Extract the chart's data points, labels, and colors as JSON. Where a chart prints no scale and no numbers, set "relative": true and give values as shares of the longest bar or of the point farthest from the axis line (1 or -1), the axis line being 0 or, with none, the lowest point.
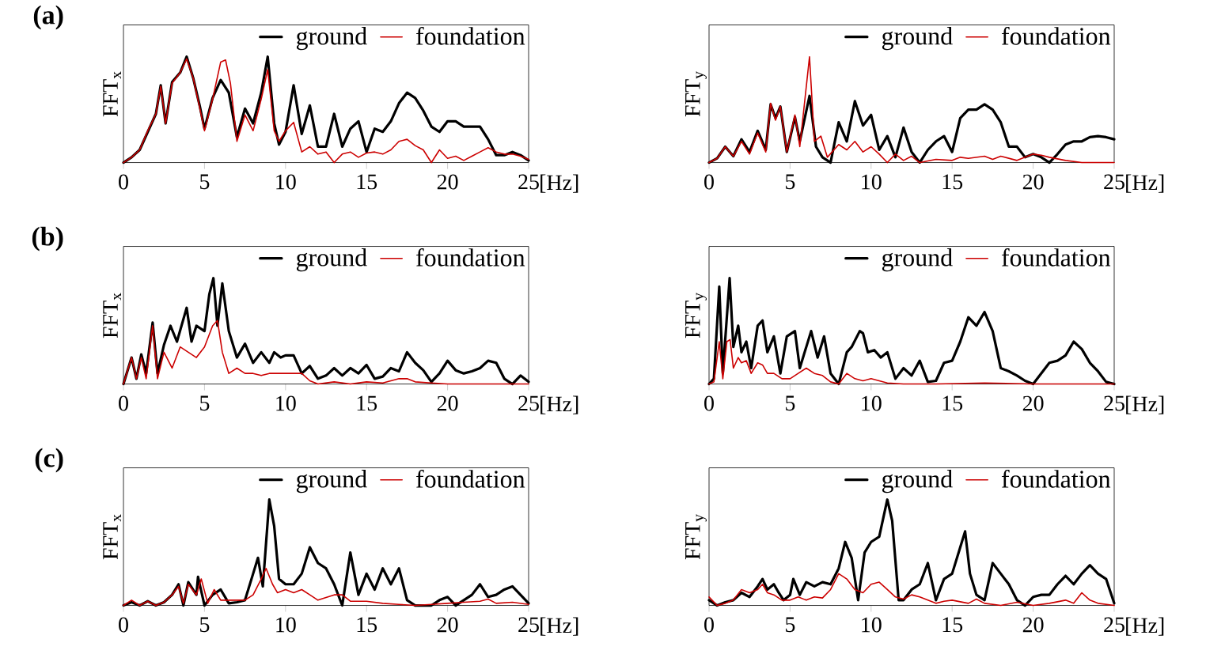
{
  "chart_data": [
    {
      "type": "line",
      "title": "(a)",
      "xlabel": "[Hz]",
      "ylabel": "FFT$_{x}$",
      "relative": true,
      "xlim": [
        0,
        25
      ],
      "xticks": [
        0,
        5,
        10,
        15,
        20,
        25
      ],
      "legend": "top right",
      "series": [
        {
          "name": "ground",
          "color": "#000000",
          "x": [
            0,
            0.5,
            1,
            1.5,
            2,
            2.3,
            2.6,
            3,
            3.5,
            3.9,
            4.3,
            4.7,
            5,
            5.5,
            6,
            6.5,
            7,
            7.5,
            8,
            8.5,
            8.9,
            9.3,
            9.6,
            10,
            10.5,
            11,
            11.5,
            12,
            12.5,
            13,
            13.5,
            14,
            14.5,
            15,
            15.5,
            16,
            16.5,
            17,
            17.5,
            18,
            18.5,
            19,
            19.5,
            20,
            20.5,
            21,
            21.5,
            22,
            22.5,
            23,
            23.5,
            24,
            24.5,
            25
          ],
          "values": [
            0,
            0.05,
            0.12,
            0.29,
            0.46,
            0.73,
            0.37,
            0.76,
            0.85,
            1.0,
            0.8,
            0.54,
            0.32,
            0.61,
            0.78,
            0.66,
            0.24,
            0.51,
            0.37,
            0.66,
            1.0,
            0.37,
            0.17,
            0.29,
            0.73,
            0.27,
            0.54,
            0.15,
            0.15,
            0.46,
            0.15,
            0.32,
            0.39,
            0.1,
            0.32,
            0.29,
            0.39,
            0.56,
            0.66,
            0.61,
            0.49,
            0.34,
            0.29,
            0.39,
            0.39,
            0.34,
            0.34,
            0.34,
            0.22,
            0.07,
            0.07,
            0.1,
            0.07,
            0.02
          ]
        },
        {
          "name": "foundation",
          "color": "#cc0000",
          "x": [
            0,
            0.5,
            1,
            1.5,
            2,
            2.3,
            2.6,
            3,
            3.5,
            3.9,
            4.3,
            4.7,
            5,
            5.5,
            6,
            6.3,
            6.6,
            7,
            7.5,
            8,
            8.5,
            8.9,
            9.3,
            9.6,
            10,
            10.5,
            11,
            11.5,
            12,
            12.5,
            13,
            13.5,
            14,
            14.5,
            15,
            15.5,
            16,
            16.5,
            17,
            17.5,
            18,
            18.5,
            19,
            19.5,
            20,
            20.5,
            21,
            21.5,
            22,
            22.5,
            23,
            23.5,
            24,
            24.5,
            25
          ],
          "values": [
            0,
            0.05,
            0.12,
            0.3,
            0.46,
            0.72,
            0.37,
            0.75,
            0.85,
            0.98,
            0.8,
            0.52,
            0.3,
            0.6,
            0.95,
            0.97,
            0.75,
            0.2,
            0.45,
            0.3,
            0.6,
            0.88,
            0.3,
            0.2,
            0.3,
            0.38,
            0.1,
            0.15,
            0.08,
            0.1,
            0,
            0.08,
            0.1,
            0.05,
            0.09,
            0.1,
            0.08,
            0.12,
            0.2,
            0.22,
            0.16,
            0.12,
            0,
            0.12,
            0.04,
            0.06,
            0.02,
            0.06,
            0.1,
            0.14,
            0.1,
            0.08,
            0.08,
            0.06,
            0.03
          ]
        }
      ]
    },
    {
      "type": "line",
      "xlabel": "[Hz]",
      "ylabel": "FFT$_{y}$",
      "relative": true,
      "xlim": [
        0,
        25
      ],
      "xticks": [
        0,
        5,
        10,
        15,
        20,
        25
      ],
      "legend": "top right",
      "series": [
        {
          "name": "ground",
          "color": "#000000",
          "x": [
            0,
            0.5,
            1,
            1.5,
            2,
            2.5,
            3,
            3.5,
            3.8,
            4.1,
            4.4,
            4.8,
            5.3,
            5.6,
            6.2,
            6.6,
            7,
            7.5,
            8,
            8.5,
            9,
            9.5,
            10,
            10.5,
            11,
            11.5,
            12,
            12.5,
            13,
            13.5,
            14,
            14.5,
            15,
            15.5,
            16,
            16.5,
            17,
            17.5,
            18,
            18.5,
            19,
            19.5,
            20,
            20.5,
            21,
            21.5,
            22,
            22.5,
            23,
            23.5,
            24,
            24.5,
            25
          ],
          "values": [
            0,
            0.04,
            0.15,
            0.06,
            0.22,
            0.1,
            0.3,
            0.12,
            0.55,
            0.42,
            0.53,
            0.1,
            0.43,
            0.2,
            0.63,
            0.15,
            0.05,
            0,
            0.38,
            0.2,
            0.58,
            0.35,
            0.45,
            0.12,
            0.25,
            0.05,
            0.33,
            0.1,
            0,
            0.12,
            0.2,
            0.25,
            0.1,
            0.42,
            0.5,
            0.5,
            0.55,
            0.5,
            0.38,
            0.15,
            0.15,
            0.05,
            0.08,
            0.05,
            0,
            0.08,
            0.17,
            0.2,
            0.2,
            0.24,
            0.25,
            0.24,
            0.22
          ]
        },
        {
          "name": "foundation",
          "color": "#cc0000",
          "x": [
            0,
            0.5,
            1,
            1.5,
            2,
            2.5,
            3,
            3.5,
            3.8,
            4.1,
            4.4,
            4.8,
            5.3,
            5.6,
            6.2,
            6.5,
            6.9,
            7.3,
            8,
            8.5,
            9,
            9.5,
            10,
            10.5,
            11,
            11.5,
            12,
            12.5,
            13,
            14,
            15,
            15.5,
            16,
            17,
            17.5,
            18,
            19,
            20,
            20.5,
            21,
            22,
            23,
            24,
            25
          ],
          "values": [
            0,
            0.04,
            0.15,
            0.06,
            0.2,
            0.08,
            0.28,
            0.1,
            0.56,
            0.4,
            0.53,
            0.1,
            0.45,
            0.15,
            1.0,
            0.2,
            0.25,
            0.05,
            0.17,
            0.12,
            0.2,
            0.1,
            0.15,
            0.08,
            0,
            0.08,
            0.02,
            0.06,
            0,
            0.03,
            0.02,
            0.05,
            0.04,
            0.06,
            0.03,
            0.06,
            0.02,
            0.08,
            0.07,
            0.05,
            0.02,
            0,
            0,
            0
          ]
        }
      ]
    },
    {
      "type": "line",
      "title": "(b)",
      "xlabel": "[Hz]",
      "ylabel": "FFT$_{x}$",
      "relative": true,
      "xlim": [
        0,
        25
      ],
      "xticks": [
        0,
        5,
        10,
        15,
        20,
        25
      ],
      "legend": "top right",
      "series": [
        {
          "name": "ground",
          "color": "#000000",
          "x": [
            0,
            0.5,
            0.8,
            1.1,
            1.4,
            1.8,
            2.1,
            2.5,
            2.9,
            3.3,
            3.9,
            4.2,
            4.5,
            5,
            5.3,
            5.55,
            5.8,
            6.1,
            6.5,
            7,
            7.5,
            8,
            8.5,
            9,
            9.3,
            9.7,
            10,
            10.5,
            11,
            11.5,
            12,
            12.5,
            13,
            13.5,
            14,
            14.5,
            15,
            15.5,
            16,
            16.5,
            17,
            17.5,
            18,
            18.5,
            19,
            19.5,
            20,
            20.5,
            21,
            21.5,
            22,
            22.5,
            23,
            23.5,
            24,
            24.5,
            25
          ],
          "values": [
            0,
            0.25,
            0.05,
            0.28,
            0.1,
            0.58,
            0.1,
            0.37,
            0.55,
            0.4,
            0.72,
            0.4,
            0.55,
            0.5,
            0.85,
            1.0,
            0.55,
            0.95,
            0.5,
            0.25,
            0.38,
            0.2,
            0.3,
            0.2,
            0.3,
            0.25,
            0.27,
            0.27,
            0.1,
            0.17,
            0.05,
            0.08,
            0.15,
            0.08,
            0.15,
            0.1,
            0.18,
            0.05,
            0.07,
            0.15,
            0.12,
            0.3,
            0.2,
            0.13,
            0.02,
            0.1,
            0.22,
            0.13,
            0.1,
            0.12,
            0.15,
            0.22,
            0.2,
            0.05,
            0,
            0.08,
            0.02
          ]
        },
        {
          "name": "foundation",
          "color": "#cc0000",
          "x": [
            0,
            0.5,
            0.8,
            1.1,
            1.4,
            1.8,
            2.1,
            2.5,
            3,
            3.5,
            4,
            4.5,
            5,
            5.5,
            5.8,
            6.1,
            6.5,
            7,
            7.5,
            8,
            8.5,
            9,
            10,
            11,
            11.5,
            12,
            13,
            14,
            15,
            16,
            17,
            17.5,
            18,
            19,
            20,
            25
          ],
          "values": [
            0,
            0.25,
            0.05,
            0.25,
            0.05,
            0.55,
            0.05,
            0.3,
            0.15,
            0.35,
            0.3,
            0.25,
            0.35,
            0.55,
            0.6,
            0.3,
            0.1,
            0.15,
            0.1,
            0.1,
            0.08,
            0.1,
            0.1,
            0.1,
            0.03,
            0,
            0.02,
            0,
            0.02,
            0.01,
            0.05,
            0.05,
            0.02,
            0.01,
            0,
            0
          ]
        }
      ]
    },
    {
      "type": "line",
      "xlabel": "[Hz]",
      "ylabel": "FFT$_{y}$",
      "relative": true,
      "xlim": [
        0,
        25
      ],
      "xticks": [
        0,
        5,
        10,
        15,
        20,
        25
      ],
      "legend": "top right",
      "series": [
        {
          "name": "ground",
          "color": "#000000",
          "x": [
            0,
            0.3,
            0.63,
            0.85,
            1.27,
            1.5,
            1.8,
            2,
            2.3,
            2.6,
            3,
            3.3,
            3.6,
            4,
            4.4,
            4.8,
            5.3,
            5.6,
            6.3,
            6.7,
            7.1,
            7.5,
            8,
            8.5,
            8.8,
            9.3,
            9.5,
            9.8,
            10.2,
            10.6,
            11,
            11.5,
            12,
            12.5,
            13,
            13.5,
            14,
            14.5,
            15,
            15.5,
            16,
            16.5,
            17,
            17.5,
            18,
            18.5,
            19,
            19.5,
            20,
            20.5,
            21,
            21.5,
            22,
            22.5,
            23,
            23.5,
            24,
            24.5,
            25
          ],
          "values": [
            0,
            0.05,
            0.92,
            0.1,
            1.0,
            0.35,
            0.55,
            0.3,
            0.4,
            0.15,
            0.55,
            0.6,
            0.3,
            0.45,
            0.1,
            0.45,
            0.5,
            0.15,
            0.5,
            0.25,
            0.45,
            0.1,
            0,
            0.3,
            0.35,
            0.5,
            0.48,
            0.3,
            0.32,
            0.25,
            0.3,
            0.05,
            0.15,
            0.08,
            0.22,
            0.02,
            0.03,
            0.2,
            0.22,
            0.4,
            0.63,
            0.55,
            0.68,
            0.5,
            0.15,
            0.12,
            0.08,
            0.03,
            0,
            0.1,
            0.2,
            0.22,
            0.27,
            0.4,
            0.33,
            0.2,
            0.12,
            0.02,
            0
          ]
        },
        {
          "name": "foundation",
          "color": "#cc0000",
          "x": [
            0,
            0.3,
            0.63,
            0.85,
            1.1,
            1.3,
            1.5,
            1.8,
            2,
            2.3,
            2.6,
            3,
            3.3,
            3.6,
            4,
            4.5,
            5,
            5.5,
            6,
            6.5,
            7,
            7.5,
            8,
            8.5,
            9,
            9.5,
            10,
            11,
            12,
            14,
            17,
            20,
            25
          ],
          "values": [
            0,
            0.02,
            0.4,
            0.05,
            0.4,
            0.42,
            0.15,
            0.25,
            0.2,
            0.22,
            0.1,
            0.2,
            0.18,
            0.1,
            0.1,
            0.05,
            0.05,
            0.1,
            0.15,
            0.1,
            0.08,
            0.02,
            0,
            0.1,
            0.05,
            0.03,
            0.05,
            0.01,
            0,
            0,
            0.01,
            0,
            0
          ]
        }
      ]
    },
    {
      "type": "line",
      "title": "(c)",
      "xlabel": "[Hz]",
      "ylabel": "FFT$_{x}$",
      "relative": true,
      "xlim": [
        0,
        25
      ],
      "xticks": [
        0,
        5,
        10,
        15,
        20,
        25
      ],
      "legend": "top right",
      "series": [
        {
          "name": "ground",
          "color": "#000000",
          "x": [
            0,
            0.5,
            1,
            1.5,
            2,
            2.5,
            3,
            3.4,
            3.7,
            4,
            4.5,
            4.6,
            5,
            5.5,
            6,
            6.5,
            7,
            7.5,
            8,
            8.3,
            8.6,
            9,
            9.3,
            9.6,
            10,
            10.5,
            11,
            11.5,
            12,
            12.5,
            13,
            13.5,
            14,
            14.5,
            15,
            15.5,
            16,
            16.5,
            17,
            17.5,
            18,
            19,
            19.5,
            20,
            20.5,
            21,
            21.5,
            22,
            22.5,
            23,
            23.5,
            24,
            24.5,
            25
          ],
          "values": [
            0,
            0.03,
            0,
            0.04,
            0,
            0.03,
            0.1,
            0.2,
            0,
            0.22,
            0.1,
            0.27,
            0,
            0.1,
            0.15,
            0.02,
            0.03,
            0.05,
            0.3,
            0.45,
            0.18,
            1.0,
            0.75,
            0.25,
            0.2,
            0.2,
            0.3,
            0.55,
            0.4,
            0.35,
            0.2,
            0,
            0.5,
            0.1,
            0.3,
            0.15,
            0.35,
            0.2,
            0.35,
            0.05,
            0,
            0,
            0.05,
            0.08,
            0,
            0.05,
            0.1,
            0.2,
            0.08,
            0.1,
            0.15,
            0.18,
            0.1,
            0.02
          ]
        },
        {
          "name": "foundation",
          "color": "#cc0000",
          "x": [
            0,
            0.5,
            1,
            1.5,
            2,
            2.5,
            3,
            3.4,
            3.7,
            4,
            4.5,
            4.8,
            5.2,
            5.6,
            6,
            6.5,
            7,
            7.5,
            8,
            8.5,
            8.8,
            9.2,
            9.5,
            10,
            10.5,
            11,
            11.5,
            12,
            13,
            13.5,
            14,
            15,
            16,
            17,
            18,
            19,
            20,
            21,
            22,
            22.5,
            23,
            24,
            25
          ],
          "values": [
            0,
            0.05,
            0,
            0.04,
            0,
            0.03,
            0.1,
            0.18,
            0.02,
            0.2,
            0.1,
            0.25,
            0.02,
            0.15,
            0.05,
            0.05,
            0.05,
            0.05,
            0.1,
            0.25,
            0.35,
            0.2,
            0.12,
            0.15,
            0.12,
            0.15,
            0.1,
            0.05,
            0.1,
            0.1,
            0.04,
            0.04,
            0.02,
            0.01,
            0,
            0.01,
            0.02,
            0.03,
            0.04,
            0.06,
            0.02,
            0.03,
            0.01
          ]
        }
      ]
    },
    {
      "type": "line",
      "xlabel": "[Hz]",
      "ylabel": "FFT$_{y}$",
      "relative": true,
      "xlim": [
        0,
        25
      ],
      "xticks": [
        0,
        5,
        10,
        15,
        20,
        25
      ],
      "legend": "top right",
      "series": [
        {
          "name": "ground",
          "color": "#000000",
          "x": [
            0,
            0.5,
            1,
            1.5,
            2,
            2.5,
            3,
            3.3,
            3.6,
            4,
            4.3,
            4.6,
            5,
            5.2,
            5.6,
            6,
            6.5,
            7,
            7.5,
            8,
            8.4,
            8.8,
            9.2,
            9.6,
            10,
            10.5,
            11,
            11.3,
            11.7,
            12,
            12.5,
            13,
            13.5,
            14,
            14.5,
            15,
            15.5,
            15.8,
            16.1,
            16.5,
            17,
            17.5,
            18,
            18.5,
            19,
            19.5,
            20,
            20.5,
            21,
            21.5,
            22,
            22.5,
            23,
            23.5,
            24,
            24.5,
            25
          ],
          "values": [
            0.05,
            0,
            0.03,
            0.05,
            0.12,
            0.08,
            0.18,
            0.25,
            0.15,
            0.2,
            0.12,
            0.05,
            0.1,
            0.25,
            0.1,
            0.22,
            0.18,
            0.22,
            0.2,
            0.35,
            0.6,
            0.45,
            0.05,
            0.5,
            0.6,
            0.65,
            1.0,
            0.8,
            0.05,
            0.05,
            0.15,
            0.2,
            0.4,
            0.05,
            0.25,
            0.3,
            0.55,
            0.7,
            0.3,
            0.1,
            0.05,
            0.4,
            0.3,
            0.2,
            0.05,
            0,
            0.08,
            0.1,
            0.1,
            0.2,
            0.28,
            0.2,
            0.3,
            0.38,
            0.3,
            0.25,
            0.02
          ]
        },
        {
          "name": "foundation",
          "color": "#cc0000",
          "x": [
            0,
            0.5,
            1,
            1.5,
            2,
            2.5,
            3,
            3.3,
            3.6,
            4,
            4.5,
            5,
            5.5,
            6,
            6.5,
            7,
            7.5,
            8,
            8.5,
            9,
            9.5,
            10,
            10.5,
            11,
            11.5,
            12,
            12.5,
            13,
            13.5,
            14,
            14.5,
            15,
            16,
            16.5,
            17,
            18,
            19,
            20,
            21,
            22,
            22.5,
            23,
            23.5,
            24,
            25
          ],
          "values": [
            0.08,
            0,
            0.02,
            0.05,
            0.15,
            0.12,
            0.15,
            0.2,
            0.12,
            0.1,
            0.05,
            0.05,
            0.08,
            0.05,
            0.08,
            0.07,
            0.15,
            0.3,
            0.25,
            0.15,
            0.12,
            0.2,
            0.22,
            0.15,
            0.08,
            0.06,
            0.1,
            0.08,
            0.05,
            0.02,
            0.04,
            0.05,
            0.02,
            0.06,
            0.02,
            0,
            0.03,
            0,
            0.02,
            0.05,
            0.02,
            0.12,
            0.05,
            0.02,
            0
          ]
        }
      ]
    }
  ]
}
